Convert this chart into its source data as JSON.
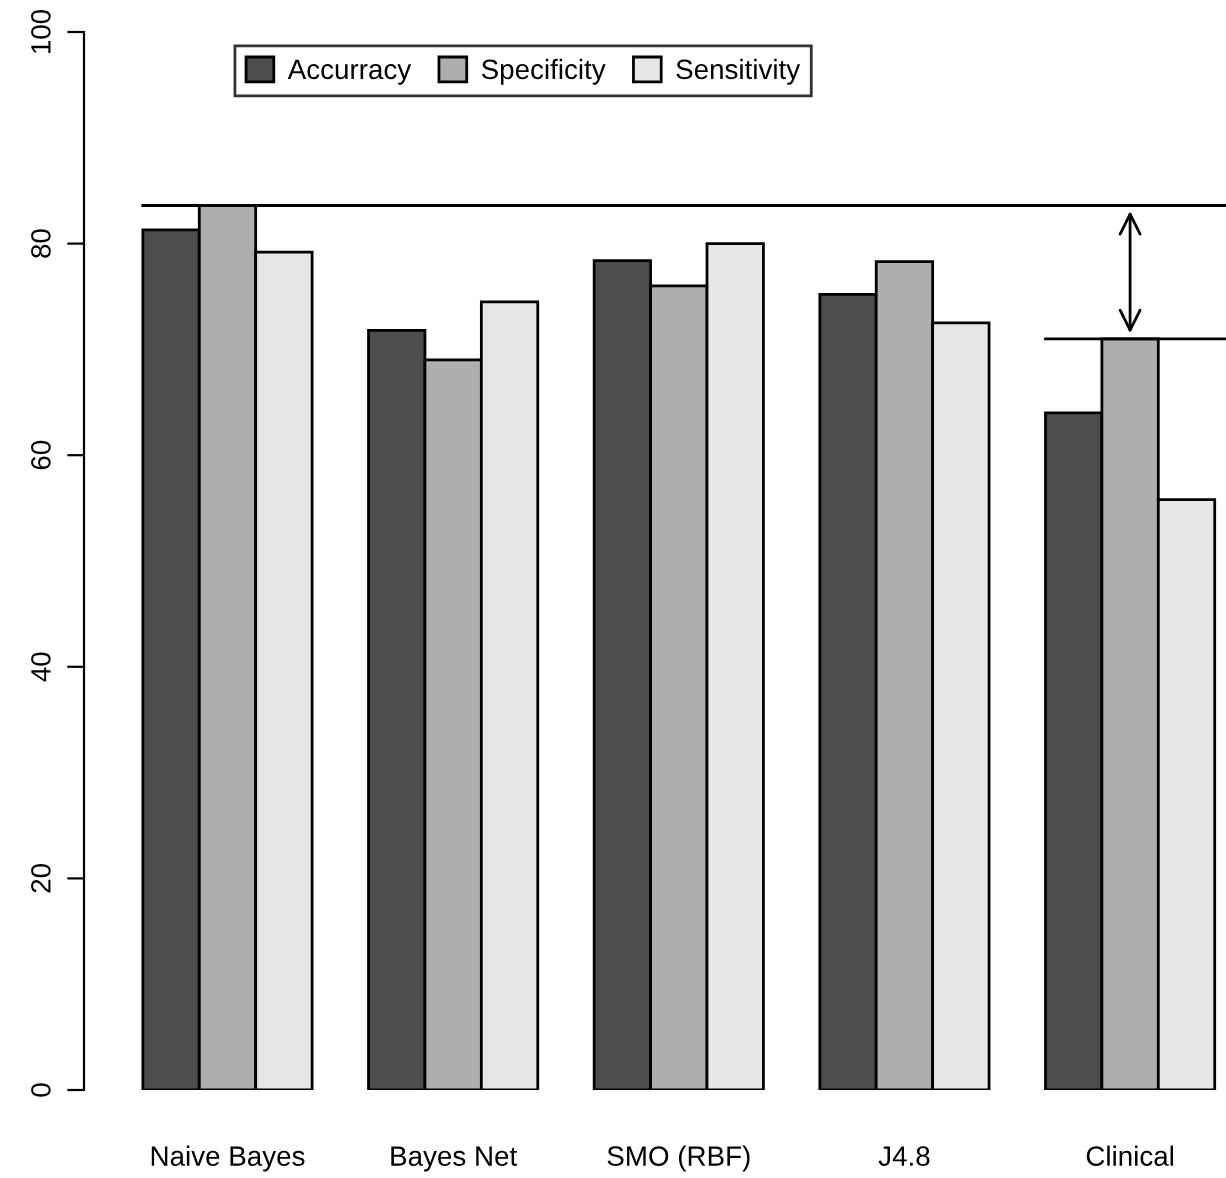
{
  "chart_data": {
    "type": "bar",
    "categories": [
      "Naive Bayes",
      "Bayes Net",
      "SMO (RBF)",
      "J4.8",
      "Clinical"
    ],
    "series": [
      {
        "name": "Accurracy",
        "color": "#4d4d4d",
        "values": [
          81.3,
          71.8,
          78.4,
          75.2,
          64.0
        ]
      },
      {
        "name": "Specificity",
        "color": "#aeaeae",
        "values": [
          83.6,
          69.0,
          76.0,
          78.3,
          71.0
        ]
      },
      {
        "name": "Sensitivity",
        "color": "#e6e6e6",
        "values": [
          79.2,
          74.5,
          80.0,
          72.5,
          55.8
        ]
      }
    ],
    "ylim": [
      0,
      100
    ],
    "yticks": [
      0,
      20,
      40,
      60,
      80,
      100
    ],
    "ref_lines": [
      {
        "axis": "y",
        "value": 83.6,
        "color": "#000000"
      },
      {
        "axis": "y",
        "value": 71.0,
        "color": "#000000"
      }
    ],
    "legend": "top left",
    "grid": false
  }
}
